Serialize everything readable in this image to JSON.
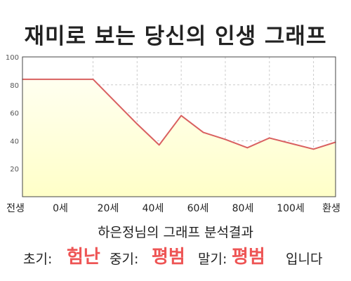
{
  "title": "재미로 보는 당신의 인생 그래프",
  "chart_data": {
    "type": "area",
    "categories": [
      "전생",
      "0세",
      "20세",
      "40세",
      "60세",
      "80세",
      "100세",
      "환생"
    ],
    "x_tick_labels": [
      "전생",
      "0세",
      "20세",
      "40세",
      "60세",
      "80세",
      "100세",
      "환생"
    ],
    "x": [
      -32,
      0,
      20,
      30,
      40,
      50,
      60,
      70,
      80,
      90,
      100,
      110
    ],
    "y": [
      84,
      84,
      52,
      37,
      58,
      46,
      41,
      35,
      42,
      38,
      34,
      39
    ],
    "ylim": [
      0,
      100
    ],
    "yticks": [
      20,
      40,
      60,
      80,
      100
    ],
    "grid": true,
    "colors": {
      "fill": "#ffffc8",
      "fill_top": "#fffff0",
      "line": "#d96060",
      "axis": "#444444",
      "grid": "#cccccc"
    }
  },
  "analysis_title": "하은정님의 그래프 분석결과",
  "result": {
    "early_label": "초기:",
    "early_value": "험난",
    "mid_label": "중기:",
    "mid_value": "평범",
    "late_label": "말기:",
    "late_value": "평범",
    "suffix": "입니다",
    "highlight_color": "#ee5555"
  }
}
